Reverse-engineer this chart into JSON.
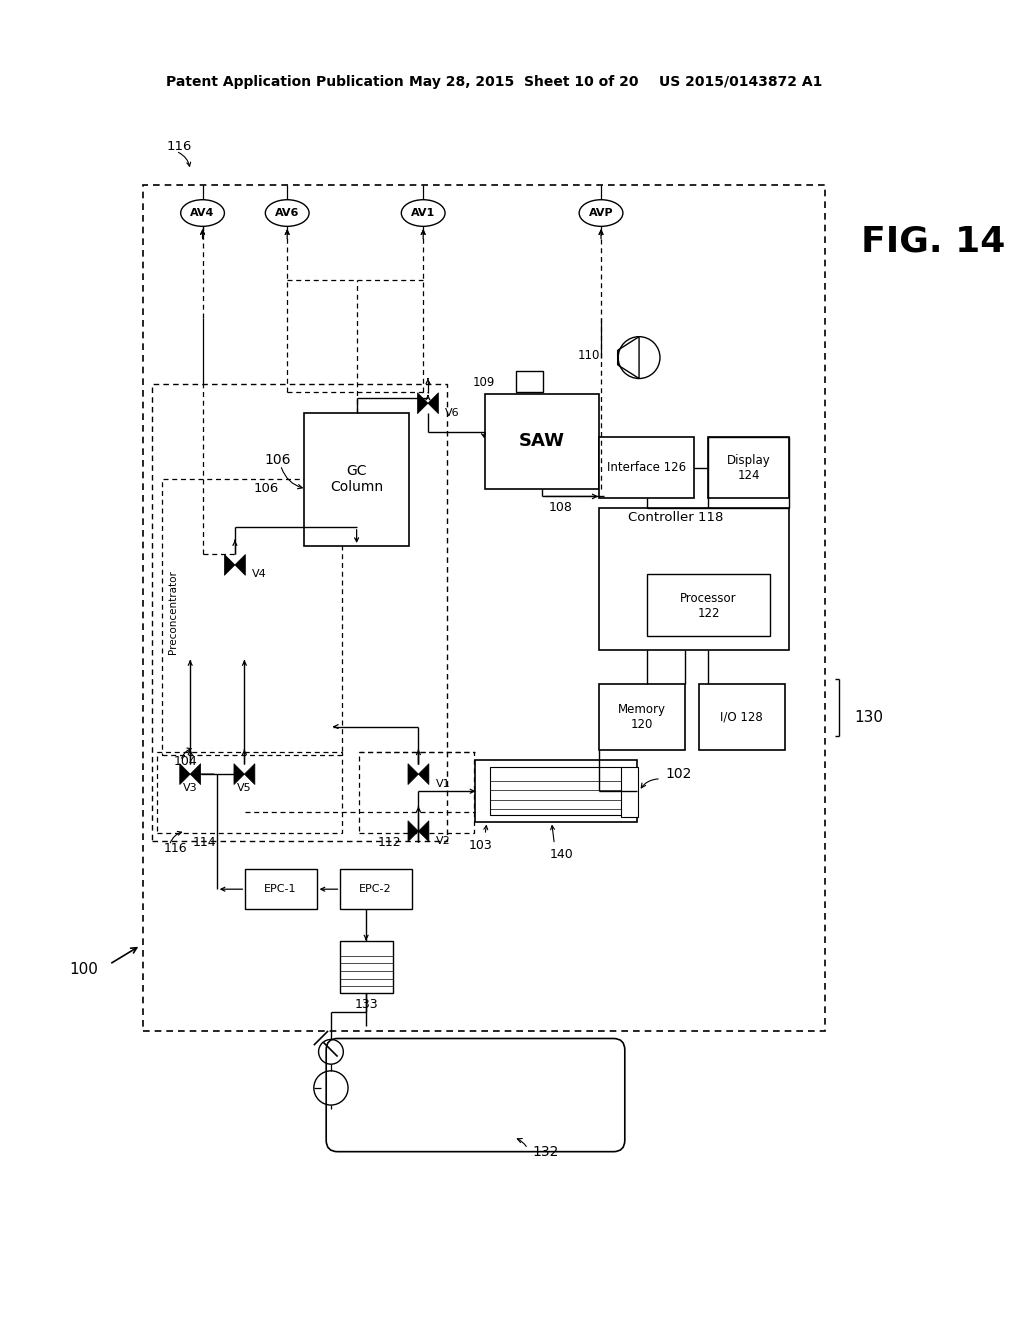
{
  "header_left": "Patent Application Publication",
  "header_mid": "May 28, 2015  Sheet 10 of 20",
  "header_right": "US 2015/0143872 A1",
  "fig_label": "FIG. 14",
  "bg_color": "#ffffff",
  "lc": "#000000",
  "tc": "#000000",
  "vent_labels": [
    "AV4",
    "AV6",
    "AV1",
    "AVP"
  ],
  "valve_labels": [
    "V6",
    "V4",
    "V3",
    "V5",
    "V1",
    "V2"
  ]
}
